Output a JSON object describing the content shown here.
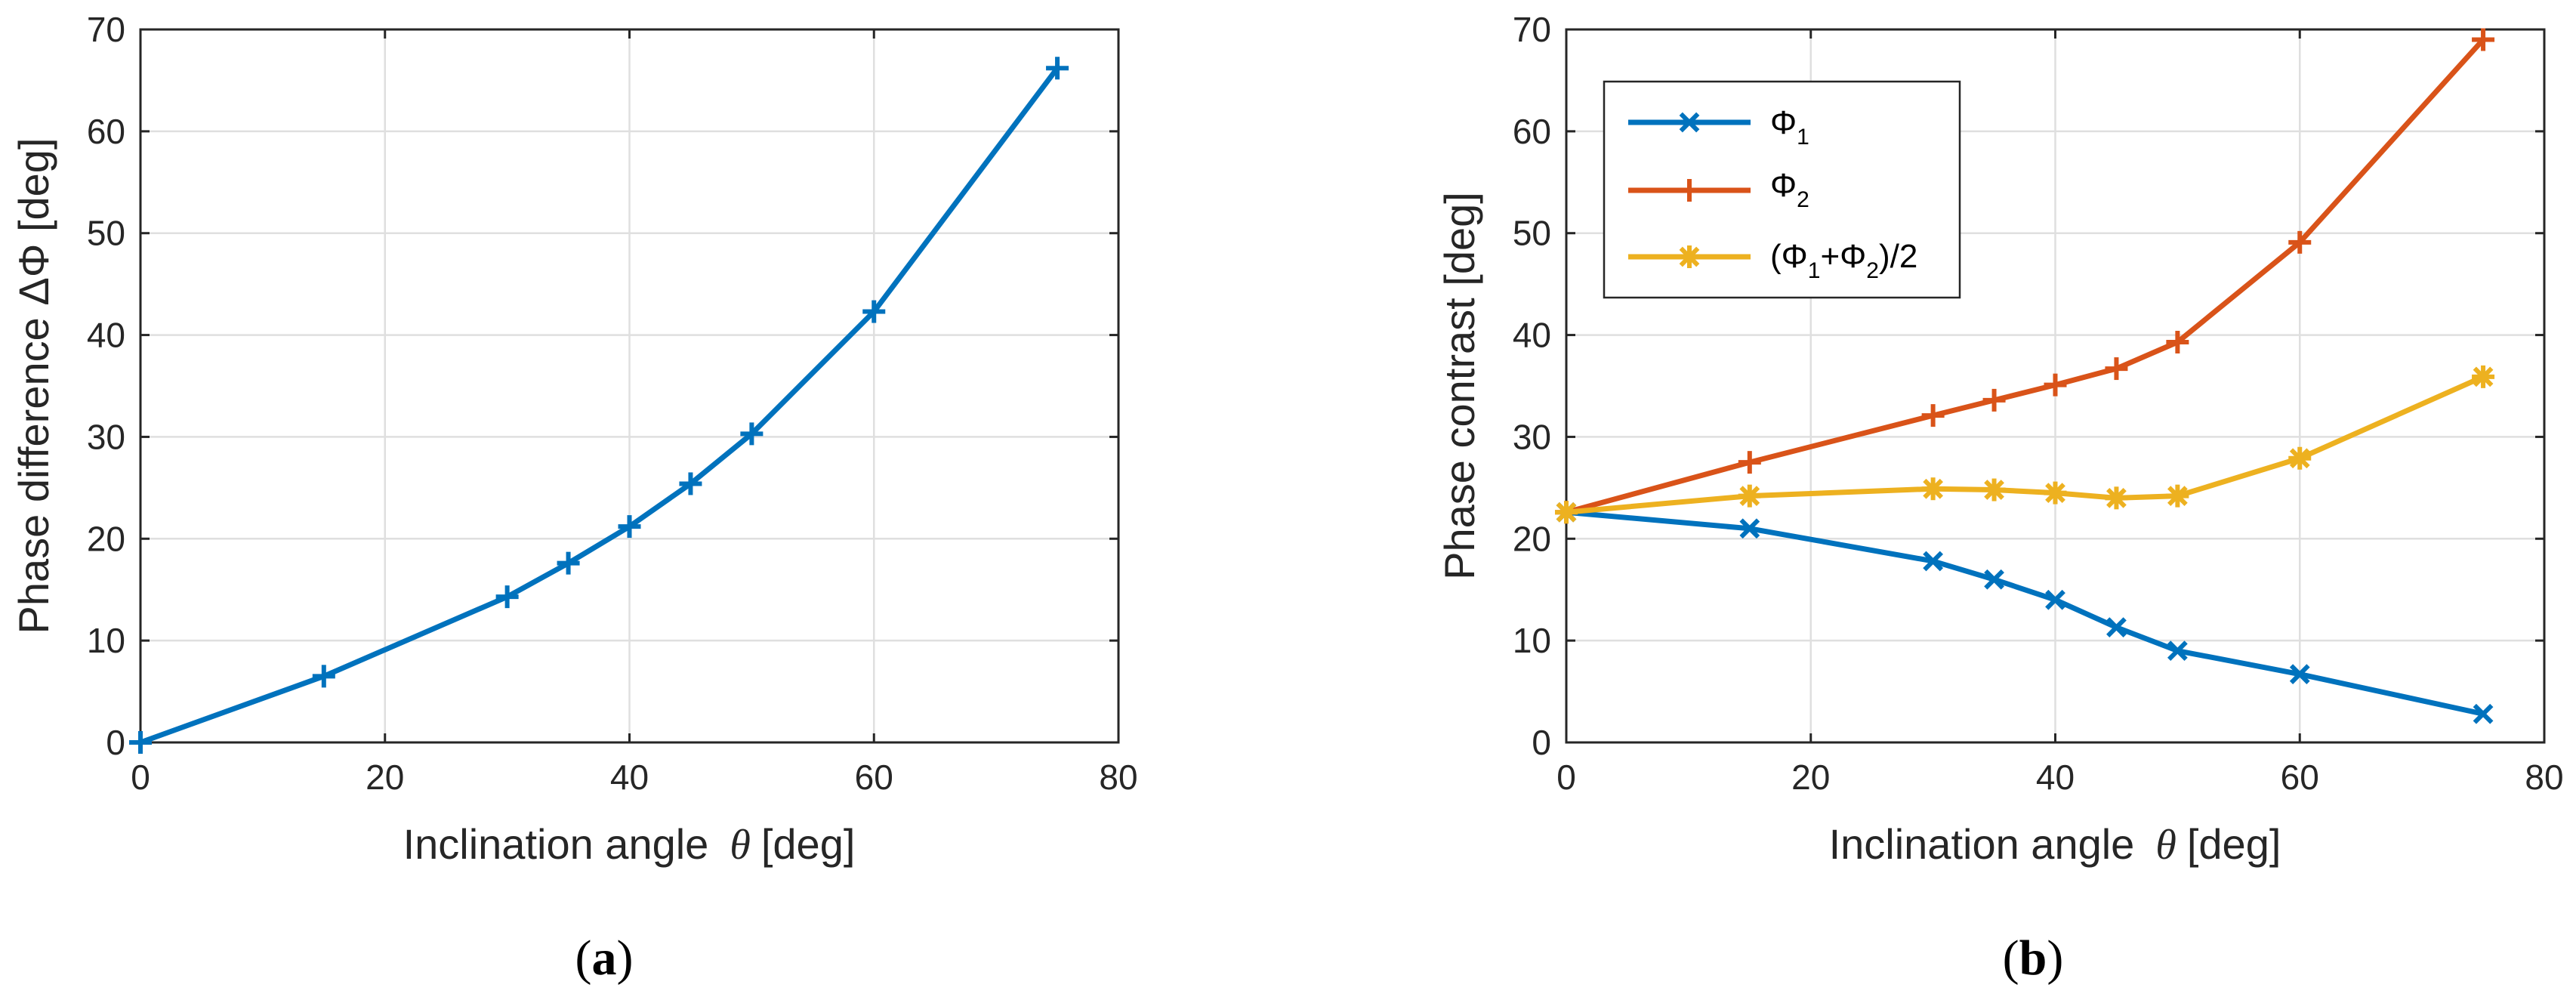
{
  "chart_data": [
    {
      "type": "line",
      "panel_label": "a",
      "xlabel": "Inclination angle",
      "xlabel_symbol": "θ",
      "xlabel_unit": "[deg]",
      "ylabel": "Phase difference ΔΦ [deg]",
      "xlim": [
        0,
        80
      ],
      "ylim": [
        0,
        70
      ],
      "xticks": [
        0,
        20,
        40,
        60,
        80
      ],
      "yticks": [
        0,
        10,
        20,
        30,
        40,
        50,
        60,
        70
      ],
      "grid": true,
      "x": [
        0,
        15,
        30,
        35,
        40,
        45,
        50,
        60,
        75
      ],
      "series": [
        {
          "name": "ΔΦ",
          "color": "#0072BD",
          "marker": "plus",
          "values": [
            0,
            6.5,
            14.3,
            17.6,
            21.2,
            25.4,
            30.3,
            42.3,
            66.2
          ]
        }
      ]
    },
    {
      "type": "line",
      "panel_label": "b",
      "xlabel": "Inclination angle",
      "xlabel_symbol": "θ",
      "xlabel_unit": "[deg]",
      "ylabel": "Phase contrast [deg]",
      "xlim": [
        0,
        80
      ],
      "ylim": [
        0,
        70
      ],
      "xticks": [
        0,
        20,
        40,
        60,
        80
      ],
      "yticks": [
        0,
        10,
        20,
        30,
        40,
        50,
        60,
        70
      ],
      "grid": true,
      "legend_position": "top-left",
      "x": [
        0,
        15,
        30,
        35,
        40,
        45,
        50,
        60,
        75
      ],
      "series": [
        {
          "name": "Φ1",
          "legend_main": "Φ",
          "legend_sub": "1",
          "color": "#0072BD",
          "marker": "x",
          "values": [
            22.6,
            21.0,
            17.8,
            16.0,
            14.0,
            11.3,
            9.0,
            6.7,
            2.8
          ]
        },
        {
          "name": "Φ2",
          "legend_main": "Φ",
          "legend_sub": "2",
          "color": "#D95319",
          "marker": "plus",
          "values": [
            22.6,
            27.5,
            32.1,
            33.6,
            35.1,
            36.7,
            39.3,
            49.1,
            69.0
          ]
        },
        {
          "name": "(Φ1+Φ2)/2",
          "legend_parts": [
            "(Φ",
            "1",
            "+Φ",
            "2",
            ")/2"
          ],
          "color": "#EDB120",
          "marker": "asterisk",
          "values": [
            22.6,
            24.2,
            24.9,
            24.8,
            24.5,
            24.0,
            24.2,
            27.9,
            35.9
          ]
        }
      ]
    }
  ],
  "captions": {
    "a": "a",
    "b": "b"
  }
}
